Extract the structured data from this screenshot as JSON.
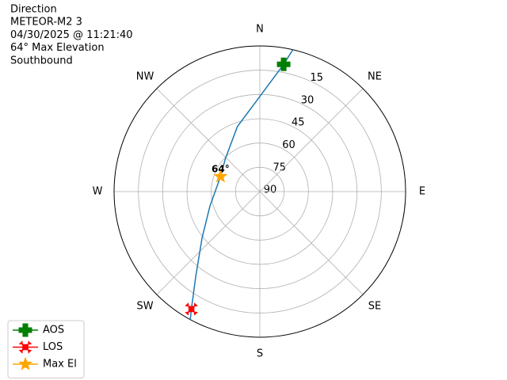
{
  "chart_data": {
    "type": "polar",
    "title_lines": [
      "Direction",
      "METEOR-M2 3",
      "04/30/2025 @ 11:21:40",
      "64° Max Elevation",
      "Southbound"
    ],
    "ylim": [
      90,
      0
    ],
    "yticks": [
      90,
      75,
      60,
      45,
      30,
      15
    ],
    "xticks": [
      {
        "value": 0,
        "label": "N"
      },
      {
        "value": 45,
        "label": "NE"
      },
      {
        "value": 90,
        "label": "E"
      },
      {
        "value": 135,
        "label": "SE"
      },
      {
        "value": 180,
        "label": "S"
      },
      {
        "value": 225,
        "label": "SW"
      },
      {
        "value": 270,
        "label": "W"
      },
      {
        "value": 315,
        "label": "NW"
      }
    ],
    "grid": true,
    "track": {
      "color": "#1f77b4",
      "theta": [
        13.1,
        10.6,
        0.9,
        341,
        314,
        291,
        254,
        231.5,
        216.9,
        210.2,
        208.5
      ],
      "r": [
        0,
        10,
        30,
        47.5,
        60.5,
        64,
        58,
        44.5,
        24,
        6,
        0
      ]
    },
    "series": [
      {
        "name": "AOS",
        "color": "green",
        "marker": "plus",
        "theta": [
          10.6
        ],
        "r": [
          10
        ]
      },
      {
        "name": "LOS",
        "color": "red",
        "marker": "x",
        "theta": [
          210.2
        ],
        "r": [
          6
        ]
      },
      {
        "name": "Max El",
        "color": "orange",
        "marker": "star",
        "theta": [
          291
        ],
        "r": [
          64
        ]
      }
    ],
    "annotation": "64°",
    "legend": "lower left"
  }
}
